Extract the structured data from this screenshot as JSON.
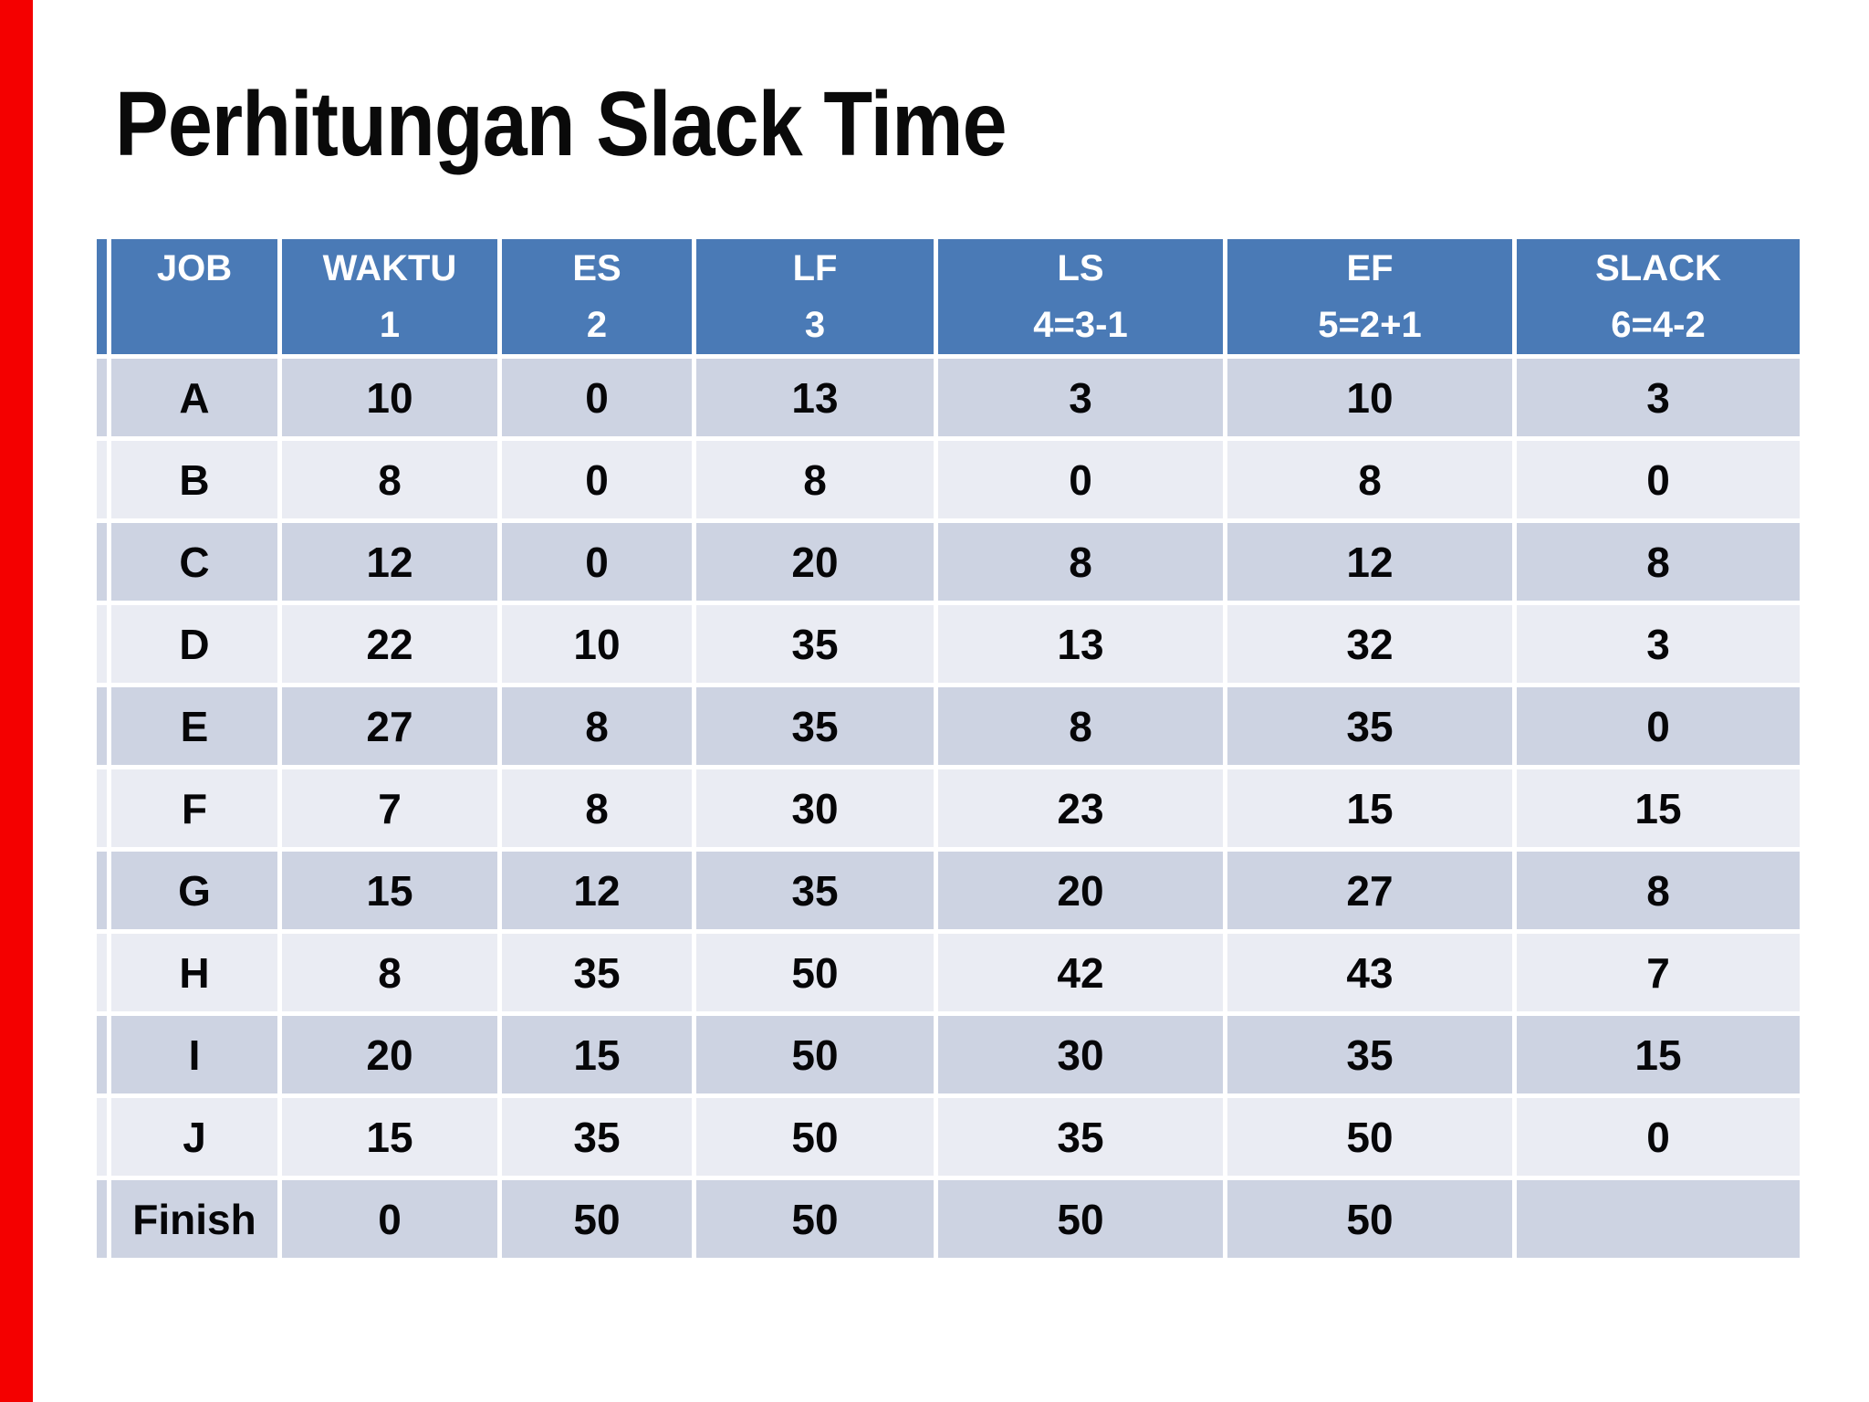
{
  "slide": {
    "title": "Perhitungan Slack Time"
  },
  "accent": {
    "left_bar_color": "#f40000",
    "header_bg": "#4a7ab6",
    "band_dark": "#cdd3e2",
    "band_light": "#eaecf3",
    "slack_zero_color": "#ff0000"
  },
  "table": {
    "headers": [
      {
        "name": "JOB",
        "sub": ""
      },
      {
        "name": "WAKTU",
        "sub": "1"
      },
      {
        "name": "ES",
        "sub": "2"
      },
      {
        "name": "LF",
        "sub": "3"
      },
      {
        "name": "LS",
        "sub": "4=3-1"
      },
      {
        "name": "EF",
        "sub": "5=2+1"
      },
      {
        "name": "SLACK",
        "sub": "6=4-2"
      }
    ],
    "rows": [
      {
        "cells": [
          "A",
          "10",
          "0",
          "13",
          "3",
          "10",
          "3"
        ],
        "slack_red": false
      },
      {
        "cells": [
          "B",
          "8",
          "0",
          "8",
          "0",
          "8",
          "0"
        ],
        "slack_red": true
      },
      {
        "cells": [
          "C",
          "12",
          "0",
          "20",
          "8",
          "12",
          "8"
        ],
        "slack_red": false
      },
      {
        "cells": [
          "D",
          "22",
          "10",
          "35",
          "13",
          "32",
          "3"
        ],
        "slack_red": false
      },
      {
        "cells": [
          "E",
          "27",
          "8",
          "35",
          "8",
          "35",
          "0"
        ],
        "slack_red": true
      },
      {
        "cells": [
          "F",
          "7",
          "8",
          "30",
          "23",
          "15",
          "15"
        ],
        "slack_red": false
      },
      {
        "cells": [
          "G",
          "15",
          "12",
          "35",
          "20",
          "27",
          "8"
        ],
        "slack_red": false
      },
      {
        "cells": [
          "H",
          "8",
          "35",
          "50",
          "42",
          "43",
          "7"
        ],
        "slack_red": false
      },
      {
        "cells": [
          "I",
          "20",
          "15",
          "50",
          "30",
          "35",
          "15"
        ],
        "slack_red": false
      },
      {
        "cells": [
          "J",
          "15",
          "35",
          "50",
          "35",
          "50",
          "0"
        ],
        "slack_red": true
      },
      {
        "cells": [
          "Finish",
          "0",
          "50",
          "50",
          "50",
          "50",
          ""
        ],
        "slack_red": false
      }
    ]
  }
}
